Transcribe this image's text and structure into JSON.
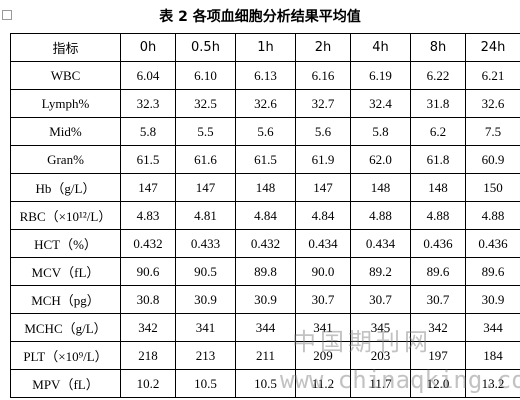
{
  "header": {
    "title": "表 2 各项血细胞分析结果平均值"
  },
  "table": {
    "columns": [
      "指标",
      "0h",
      "0.5h",
      "1h",
      "2h",
      "4h",
      "8h",
      "24h"
    ],
    "rows": [
      [
        "WBC",
        "6.04",
        "6.10",
        "6.13",
        "6.16",
        "6.19",
        "6.22",
        "6.21"
      ],
      [
        "Lymph%",
        "32.3",
        "32.5",
        "32.6",
        "32.7",
        "32.4",
        "31.8",
        "32.6"
      ],
      [
        "Mid%",
        "5.8",
        "5.5",
        "5.6",
        "5.6",
        "5.8",
        "6.2",
        "7.5"
      ],
      [
        "Gran%",
        "61.5",
        "61.6",
        "61.5",
        "61.9",
        "62.0",
        "61.8",
        "60.9"
      ],
      [
        "Hb（g/L）",
        "147",
        "147",
        "148",
        "147",
        "148",
        "148",
        "150"
      ],
      [
        "RBC（×10¹²/L）",
        "4.83",
        "4.81",
        "4.84",
        "4.84",
        "4.88",
        "4.88",
        "4.88"
      ],
      [
        "HCT（%）",
        "0.432",
        "0.433",
        "0.432",
        "0.434",
        "0.434",
        "0.436",
        "0.436"
      ],
      [
        "MCV（fL）",
        "90.6",
        "90.5",
        "89.8",
        "90.0",
        "89.2",
        "89.6",
        "89.6"
      ],
      [
        "MCH（pg）",
        "30.8",
        "30.9",
        "30.9",
        "30.7",
        "30.7",
        "30.7",
        "30.9"
      ],
      [
        "MCHC（g/L）",
        "342",
        "341",
        "344",
        "341",
        "345",
        "342",
        "344"
      ],
      [
        "PLT（×10⁹/L）",
        "218",
        "213",
        "211",
        "209",
        "203",
        "197",
        "184"
      ],
      [
        "MPV（fL）",
        "10.2",
        "10.5",
        "10.5",
        "11.2",
        "11.7",
        "12.0",
        "13.2"
      ]
    ]
  },
  "watermark": {
    "logo": "中国期刊网",
    "url": "www.chinaqking.com"
  }
}
